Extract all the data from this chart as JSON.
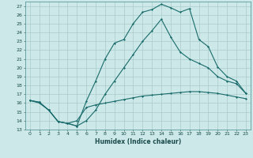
{
  "xlabel": "Humidex (Indice chaleur)",
  "bg_color": "#cce8e8",
  "grid_color": "#aacccc",
  "line_color": "#1a6b6b",
  "xlim": [
    -0.5,
    23.5
  ],
  "ylim": [
    13,
    27.5
  ],
  "yticks": [
    13,
    14,
    15,
    16,
    17,
    18,
    19,
    20,
    21,
    22,
    23,
    24,
    25,
    26,
    27
  ],
  "xticks": [
    0,
    1,
    2,
    3,
    4,
    5,
    6,
    7,
    8,
    9,
    10,
    11,
    12,
    13,
    14,
    15,
    16,
    17,
    18,
    19,
    20,
    21,
    22,
    23
  ],
  "line1_x": [
    0,
    1,
    2,
    3,
    4,
    5,
    6,
    7,
    8,
    9,
    10,
    11,
    12,
    13,
    14,
    15,
    16,
    17,
    18,
    19,
    20,
    21,
    22,
    23
  ],
  "line1_y": [
    16.3,
    16.1,
    15.2,
    13.9,
    13.7,
    13.4,
    16.2,
    18.5,
    21.0,
    22.8,
    23.2,
    25.0,
    26.3,
    26.6,
    27.2,
    26.8,
    26.3,
    26.7,
    23.2,
    22.4,
    20.1,
    19.0,
    18.5,
    17.1
  ],
  "line2_x": [
    0,
    1,
    2,
    3,
    4,
    5,
    6,
    7,
    8,
    9,
    10,
    11,
    12,
    13,
    14,
    15,
    16,
    17,
    18,
    19,
    20,
    21,
    22,
    23
  ],
  "line2_y": [
    16.3,
    16.0,
    15.2,
    13.9,
    13.7,
    14.0,
    15.5,
    15.8,
    16.0,
    16.2,
    16.4,
    16.6,
    16.8,
    16.9,
    17.0,
    17.1,
    17.2,
    17.3,
    17.3,
    17.2,
    17.1,
    16.9,
    16.7,
    16.5
  ],
  "line3_x": [
    0,
    1,
    2,
    3,
    4,
    5,
    6,
    7,
    8,
    9,
    10,
    11,
    12,
    13,
    14,
    15,
    16,
    17,
    18,
    19,
    20,
    21,
    22,
    23
  ],
  "line3_y": [
    16.3,
    16.1,
    15.2,
    13.9,
    13.7,
    13.4,
    14.0,
    15.2,
    17.0,
    18.5,
    20.0,
    21.5,
    23.0,
    24.2,
    25.5,
    23.5,
    21.8,
    21.0,
    20.5,
    20.0,
    19.0,
    18.5,
    18.2,
    17.1
  ]
}
